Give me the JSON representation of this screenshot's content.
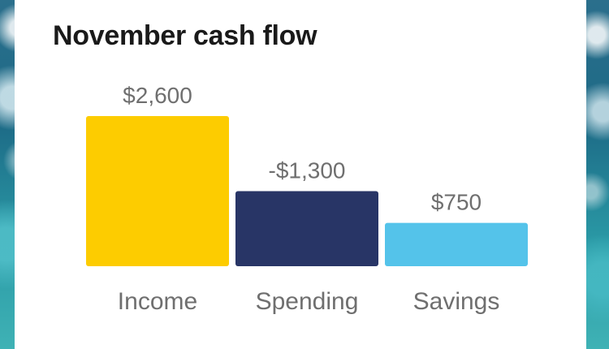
{
  "chart_data": {
    "type": "bar",
    "title": "November cash flow",
    "categories": [
      "Income",
      "Spending",
      "Savings"
    ],
    "values": [
      2600,
      -1300,
      750
    ],
    "value_labels": [
      "$2,600",
      "-$1,300",
      "$750"
    ],
    "colors": [
      "#FDCC00",
      "#283566",
      "#54C3EA"
    ],
    "xlabel": "",
    "ylabel": "",
    "grid": false,
    "legend": "none"
  }
}
